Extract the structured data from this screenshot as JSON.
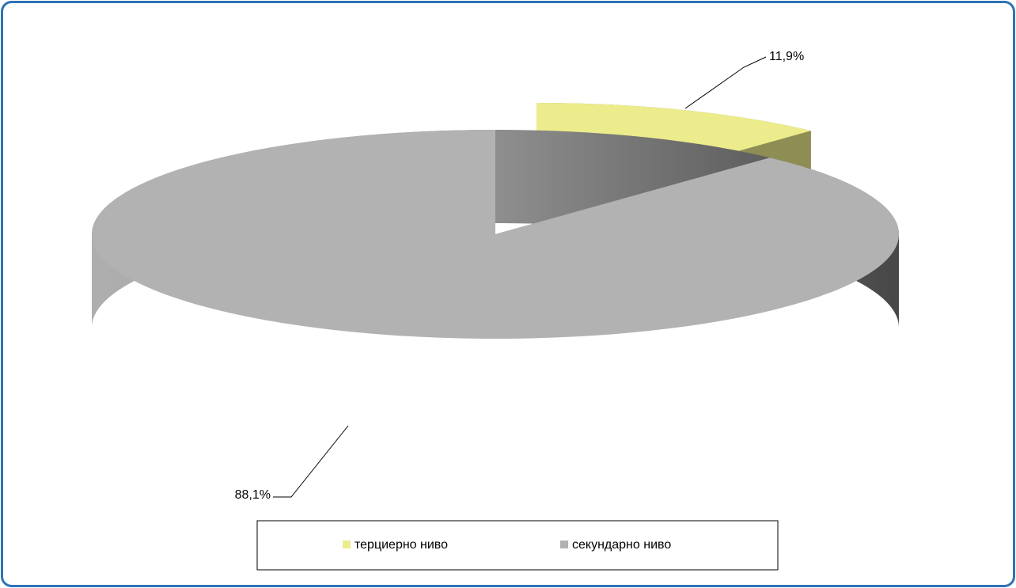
{
  "chart_data": {
    "type": "pie3d",
    "categories": [
      "терциерно ниво",
      "секундарно ниво"
    ],
    "values": [
      11.9,
      88.1
    ],
    "value_labels": [
      "11,9%",
      "88,1%"
    ],
    "colors": [
      "#ecec8c",
      "#b2b2b2"
    ],
    "legend": "bottom"
  }
}
